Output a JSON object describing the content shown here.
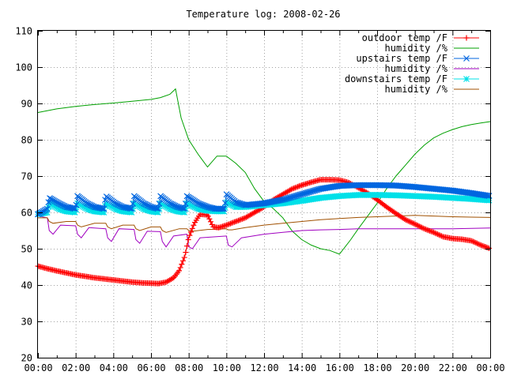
{
  "chart_data": {
    "type": "line",
    "title": "Temperature log: 2008-02-26",
    "xlabel": "",
    "ylabel": "",
    "ylim": [
      20,
      110
    ],
    "xlim": [
      "00:00",
      "24:00"
    ],
    "grid": true,
    "legend_position": "top-right",
    "x_ticks": [
      "00:00",
      "02:00",
      "04:00",
      "06:00",
      "08:00",
      "10:00",
      "12:00",
      "14:00",
      "16:00",
      "18:00",
      "20:00",
      "22:00",
      "00:00"
    ],
    "y_ticks": [
      "20",
      "30",
      "40",
      "50",
      "60",
      "70",
      "80",
      "90",
      "100",
      "110"
    ],
    "series": [
      {
        "name": "outdoor temp /F",
        "color": "#ff0000",
        "marker": "+",
        "dense": true,
        "x": [
          0,
          0.5,
          1,
          2,
          3,
          4,
          5,
          5.5,
          6,
          6.4,
          6.8,
          7.2,
          7.5,
          7.8,
          8.0,
          8.3,
          8.6,
          9.0,
          9.3,
          9.6,
          10,
          10.5,
          11,
          11.5,
          12,
          12.5,
          13,
          13.5,
          14,
          14.5,
          15,
          15.5,
          16,
          16.5,
          17,
          17.5,
          18,
          18.5,
          19,
          19.5,
          20,
          20.5,
          21,
          21.5,
          22,
          22.5,
          23,
          23.5,
          24
        ],
        "y": [
          45.2,
          44.5,
          43.9,
          42.8,
          42.0,
          41.4,
          40.8,
          40.6,
          40.5,
          40.4,
          40.8,
          42,
          44,
          48,
          53,
          57,
          59.5,
          59.3,
          56,
          55.8,
          56.5,
          57.5,
          58.5,
          60,
          61.5,
          63.5,
          65,
          66.5,
          67.5,
          68.3,
          69,
          69,
          68.9,
          68.2,
          66.8,
          65.3,
          63.5,
          61.5,
          59.7,
          58,
          56.8,
          55.5,
          54.5,
          53.3,
          52.8,
          52.6,
          52.2,
          51,
          50
        ]
      },
      {
        "name": "humidity /%",
        "color": "#00a000",
        "marker": "",
        "dense": false,
        "x": [
          0,
          1,
          2,
          3,
          4,
          5,
          6,
          6.5,
          7,
          7.3,
          7.6,
          8.0,
          8.5,
          9.0,
          9.5,
          10,
          10.5,
          11,
          11.5,
          12,
          12.5,
          13,
          13.5,
          14,
          14.5,
          15,
          15.5,
          16,
          16.3,
          16.6,
          17,
          17.5,
          18,
          18.5,
          19,
          19.5,
          20,
          20.5,
          21,
          21.5,
          22,
          22.5,
          23,
          23.5,
          24
        ],
        "y": [
          87.5,
          88.5,
          89.2,
          89.7,
          90.1,
          90.6,
          91.1,
          91.6,
          92.5,
          94,
          86,
          80,
          76,
          72.5,
          75.5,
          75.5,
          73.5,
          71,
          66.5,
          63,
          61,
          58.5,
          54.8,
          52.5,
          51,
          50,
          49.5,
          48.5,
          50.5,
          52.5,
          55.5,
          59,
          62.5,
          66.5,
          70,
          73,
          76,
          78.5,
          80.5,
          81.8,
          82.8,
          83.6,
          84.2,
          84.6,
          85
        ]
      },
      {
        "name": "upstairs temp /F",
        "color": "#0066e0",
        "marker": "x",
        "dense": true,
        "x": [
          0,
          0.5,
          0.6,
          1.1,
          1.5,
          2.0,
          2.1,
          2.6,
          3.0,
          3.5,
          3.6,
          4.1,
          4.5,
          5.0,
          5.1,
          5.6,
          6.0,
          6.4,
          6.5,
          7.0,
          7.4,
          7.8,
          7.9,
          8.5,
          9.0,
          9.4,
          9.9,
          10.0,
          10.5,
          11,
          12,
          13,
          14,
          15,
          16,
          17,
          18,
          19,
          20,
          21,
          22,
          23,
          24
        ],
        "y": [
          59.5,
          61,
          64,
          62.5,
          61.5,
          61,
          64.5,
          62.5,
          61.5,
          61,
          64.5,
          62.5,
          61.5,
          61,
          64.5,
          62.5,
          61.5,
          61,
          64.5,
          62.5,
          61.5,
          61,
          64.5,
          62.5,
          61.5,
          61,
          61,
          65,
          62.8,
          62,
          62.5,
          63.5,
          65,
          66.5,
          67.3,
          67.5,
          67.5,
          67.4,
          67,
          66.5,
          66,
          65.3,
          64.5
        ]
      },
      {
        "name": "humidity /%",
        "color": "#a000c0",
        "marker": "",
        "dense": false,
        "x": [
          0,
          0.5,
          0.6,
          0.8,
          1.2,
          2.0,
          2.1,
          2.3,
          2.7,
          3.6,
          3.7,
          3.9,
          4.3,
          5.1,
          5.2,
          5.4,
          5.8,
          6.5,
          6.6,
          6.8,
          7.2,
          7.9,
          8.0,
          8.2,
          8.6,
          10.0,
          10.1,
          10.3,
          10.8,
          12,
          13,
          14,
          15,
          16,
          17,
          18,
          19,
          20,
          21,
          22,
          23,
          24
        ],
        "y": [
          59,
          58.5,
          55,
          54,
          56.5,
          56.3,
          54,
          53,
          55.8,
          55.5,
          53,
          52,
          55.5,
          55.3,
          52.5,
          51.5,
          54.8,
          54.7,
          52,
          50.5,
          53.5,
          54,
          50.5,
          50,
          53,
          53.5,
          51,
          50.5,
          53,
          54,
          54.5,
          55,
          55.2,
          55.3,
          55.5,
          55.5,
          55.5,
          55.5,
          55.5,
          55.5,
          55.6,
          55.7
        ]
      },
      {
        "name": "downstairs temp /F",
        "color": "#00e0e8",
        "marker": "*",
        "dense": true,
        "x": [
          0,
          0.5,
          0.6,
          1.1,
          1.5,
          2.0,
          2.1,
          2.6,
          3.0,
          3.5,
          3.6,
          4.1,
          4.5,
          5.0,
          5.1,
          5.6,
          6.0,
          6.4,
          6.5,
          7.0,
          7.4,
          7.8,
          7.9,
          8.5,
          9.0,
          9.4,
          9.9,
          10.0,
          10.5,
          11,
          12,
          13,
          14,
          15,
          16,
          17,
          18,
          19,
          20,
          21,
          22,
          23,
          24
        ],
        "y": [
          59.5,
          60,
          62.5,
          61,
          60.3,
          60,
          62.5,
          61,
          60.3,
          60,
          62.5,
          61,
          60.3,
          60,
          62.5,
          61,
          60.3,
          60,
          62.5,
          61,
          60.3,
          60,
          62.5,
          61,
          60.5,
          60.3,
          60.3,
          62.8,
          61.5,
          61.5,
          62,
          62.5,
          63.2,
          64,
          64.5,
          64.8,
          64.8,
          64.7,
          64.5,
          64.3,
          64,
          63.7,
          63.3
        ]
      },
      {
        "name": "humidity /%",
        "color": "#a05000",
        "marker": "",
        "dense": false,
        "x": [
          0,
          0.5,
          0.6,
          0.8,
          1.5,
          2.0,
          2.1,
          2.3,
          3.0,
          3.6,
          3.7,
          3.9,
          4.5,
          5.1,
          5.2,
          5.4,
          6.0,
          6.5,
          6.6,
          6.8,
          7.5,
          7.9,
          8.0,
          8.2,
          9.0,
          10.0,
          10.1,
          10.3,
          11,
          12,
          13,
          14,
          15,
          16,
          17,
          18,
          19,
          20,
          21,
          22,
          23,
          24
        ],
        "y": [
          58.5,
          58.5,
          57.5,
          57,
          57.5,
          57.5,
          56.5,
          56,
          57,
          57,
          56,
          55.5,
          56.5,
          56.5,
          55.5,
          55,
          56,
          56,
          55,
          54.5,
          55.5,
          55.5,
          55,
          54.8,
          55.3,
          55.5,
          55.2,
          55.2,
          55.8,
          56.5,
          57,
          57.5,
          58,
          58.3,
          58.6,
          58.8,
          59,
          59.2,
          59,
          58.8,
          58.7,
          58.6
        ]
      }
    ]
  }
}
